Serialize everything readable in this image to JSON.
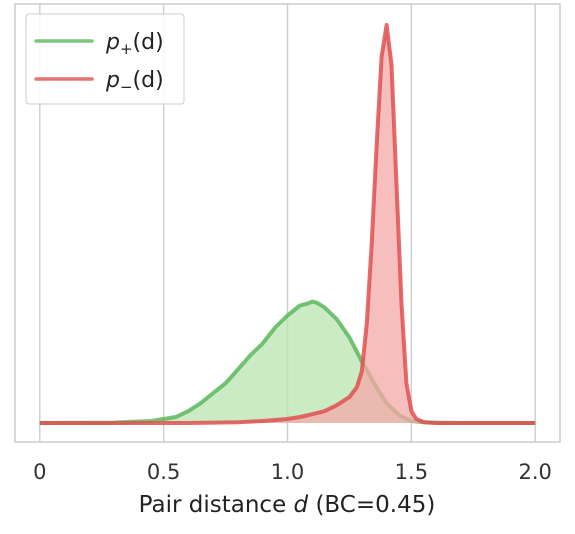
{
  "chart_data": {
    "type": "area",
    "xlabel": "Pair distance d (BC=0.45)",
    "xlabel_prefix": "Pair distance ",
    "xlabel_var": "d",
    "xlabel_suffix": " (BC=0.45)",
    "xlim": [
      -0.1,
      2.1
    ],
    "ylim": [
      0,
      1
    ],
    "grid": "vertical",
    "x_ticks": [
      0,
      0.5,
      1.0,
      1.5,
      2.0
    ],
    "x_tick_labels": [
      "0",
      "0.5",
      "1.0",
      "1.5",
      "2.0"
    ],
    "legend_position": "top-left",
    "series": [
      {
        "name": "p+(d)",
        "legend_main": "p",
        "legend_sub": "+",
        "legend_tail": "(d)",
        "color": "#5cb85c",
        "fill": "#b8e4b0",
        "x": [
          0,
          0.3,
          0.45,
          0.55,
          0.6,
          0.65,
          0.7,
          0.75,
          0.8,
          0.85,
          0.9,
          0.95,
          1.0,
          1.05,
          1.08,
          1.1,
          1.12,
          1.15,
          1.2,
          1.25,
          1.3,
          1.35,
          1.4,
          1.45,
          1.5,
          1.55,
          1.6,
          1.7,
          2.0
        ],
        "values": [
          0,
          0.001,
          0.005,
          0.015,
          0.03,
          0.05,
          0.075,
          0.1,
          0.135,
          0.17,
          0.2,
          0.24,
          0.27,
          0.295,
          0.3,
          0.305,
          0.302,
          0.29,
          0.26,
          0.215,
          0.155,
          0.1,
          0.05,
          0.02,
          0.005,
          0.002,
          0.001,
          0,
          0
        ]
      },
      {
        "name": "p-(d)",
        "legend_main": "p",
        "legend_sub": "−",
        "legend_tail": "(d)",
        "color": "#e05050",
        "fill": "#f4a8a8",
        "x": [
          0,
          0.6,
          0.8,
          0.9,
          1.0,
          1.05,
          1.1,
          1.15,
          1.2,
          1.25,
          1.28,
          1.3,
          1.32,
          1.34,
          1.36,
          1.38,
          1.4,
          1.42,
          1.44,
          1.46,
          1.48,
          1.5,
          1.52,
          1.55,
          1.6,
          2.0
        ],
        "values": [
          0,
          0,
          0.002,
          0.005,
          0.01,
          0.015,
          0.022,
          0.03,
          0.045,
          0.065,
          0.09,
          0.13,
          0.25,
          0.45,
          0.7,
          0.92,
          1.0,
          0.9,
          0.6,
          0.3,
          0.1,
          0.03,
          0.01,
          0.002,
          0,
          0
        ]
      }
    ]
  }
}
